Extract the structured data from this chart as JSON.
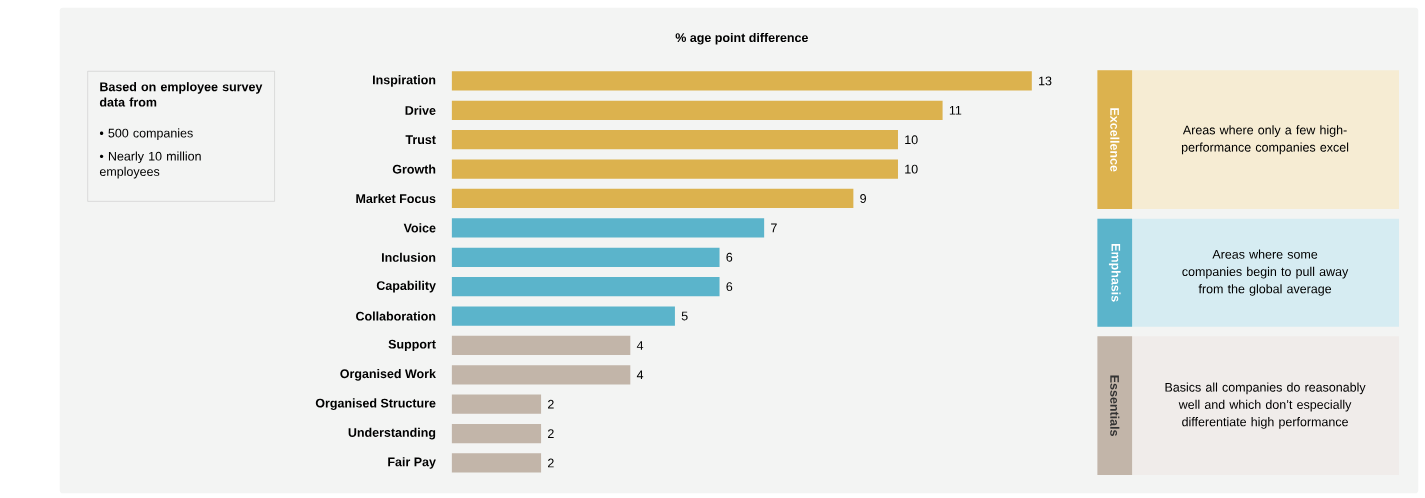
{
  "chart_data": {
    "type": "bar",
    "orientation": "horizontal",
    "title": "% age point difference",
    "categories": [
      "Inspiration",
      "Drive",
      "Trust",
      "Growth",
      "Market Focus",
      "Voice",
      "Inclusion",
      "Capability",
      "Collaboration",
      "Support",
      "Organised Work",
      "Organised Structure",
      "Understanding",
      "Fair Pay"
    ],
    "values": [
      13,
      11,
      10,
      10,
      9,
      7,
      6,
      6,
      5,
      4,
      4,
      2,
      2,
      2
    ],
    "colors": [
      "#dcb24e",
      "#dcb24e",
      "#dcb24e",
      "#dcb24e",
      "#dcb24e",
      "#5bb4cb",
      "#5bb4cb",
      "#5bb4cb",
      "#5bb4cb",
      "#c2b5a9",
      "#c2b5a9",
      "#c2b5a9",
      "#c2b5a9",
      "#c2b5a9"
    ],
    "xlim": [
      0,
      13
    ],
    "data_labels": true,
    "annotations": [
      "Based on employee survey data from",
      "• 500 companies",
      "• Nearly 10 million employees",
      "Excellence",
      "Areas where only a few high-performance companies excel",
      "Emphasis",
      "Areas where some companies begin to pull away from the global average",
      "Essentials",
      "Basics all companies do reasonably well and which don’t especially differentiate high performance"
    ]
  }
}
